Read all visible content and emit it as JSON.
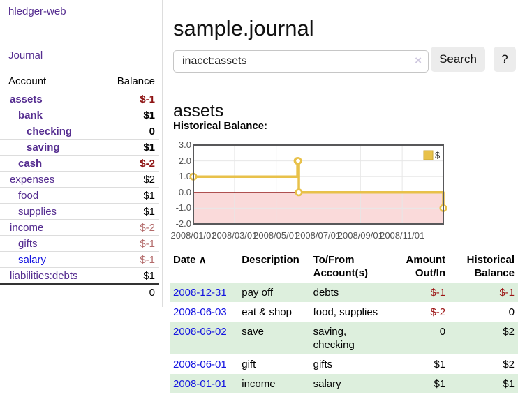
{
  "colors": {
    "link_purple": "#552d90",
    "link_blue": "#1414e0",
    "negative_strong": "#8e1414",
    "negative_soft": "#b36a6a",
    "row_highlight_green": "#ddefdd",
    "chart_gold": "#e8c14a"
  },
  "sidebar": {
    "app_title": "hledger-web",
    "journal_label": "Journal",
    "accounts_table": {
      "headers": {
        "account": "Account",
        "balance": "Balance"
      },
      "rows": [
        {
          "label": "assets",
          "indent": 1,
          "bold": true,
          "balance": "$-1",
          "balance_style": "strong-neg"
        },
        {
          "label": "bank",
          "indent": 2,
          "bold": true,
          "balance": "$1",
          "balance_style": "normal"
        },
        {
          "label": "checking",
          "indent": 3,
          "bold": true,
          "balance": "0",
          "balance_style": "normal"
        },
        {
          "label": "saving",
          "indent": 3,
          "bold": true,
          "balance": "$1",
          "balance_style": "normal"
        },
        {
          "label": "cash",
          "indent": 2,
          "bold": true,
          "balance": "$-2",
          "balance_style": "strong-neg"
        },
        {
          "label": "expenses",
          "indent": 1,
          "bold": false,
          "balance": "$2",
          "balance_style": "normal"
        },
        {
          "label": "food",
          "indent": 2,
          "bold": false,
          "balance": "$1",
          "balance_style": "normal"
        },
        {
          "label": "supplies",
          "indent": 2,
          "bold": false,
          "balance": "$1",
          "balance_style": "normal"
        },
        {
          "label": "income",
          "indent": 1,
          "bold": false,
          "balance": "$-2",
          "balance_style": "soft-neg"
        },
        {
          "label": "gifts",
          "indent": 2,
          "bold": false,
          "balance": "$-1",
          "balance_style": "soft-neg"
        },
        {
          "label": "salary",
          "indent": 2,
          "bold": false,
          "balance": "$-1",
          "balance_style": "soft-neg",
          "link_style": "blue"
        },
        {
          "label": "liabilities:debts",
          "indent": 1,
          "bold": false,
          "balance": "$1",
          "balance_style": "normal"
        }
      ],
      "total": "0"
    }
  },
  "main": {
    "title": "sample.journal",
    "search": {
      "value": "inacct:assets",
      "clear_icon": "×",
      "button_label": "Search",
      "help_label": "?"
    },
    "account_heading": "assets",
    "chart_label": "Historical Balance:"
  },
  "chart_data": {
    "type": "line",
    "subtype": "step",
    "title": "Historical Balance",
    "xlim": [
      "2008-01-01",
      "2008-12-31"
    ],
    "ylim": [
      -2,
      3
    ],
    "y_ticks": [
      {
        "v": 3,
        "label": "3.0"
      },
      {
        "v": 2,
        "label": "2.0"
      },
      {
        "v": 1,
        "label": "1.0"
      },
      {
        "v": 0,
        "label": "0.0"
      },
      {
        "v": -1,
        "label": "-1.0"
      },
      {
        "v": -2,
        "label": "-2.0"
      }
    ],
    "x_ticks": [
      {
        "date": "2008-01-01",
        "label": "2008/01/01"
      },
      {
        "date": "2008-03-01",
        "label": "2008/03/01"
      },
      {
        "date": "2008-05-01",
        "label": "2008/05/01"
      },
      {
        "date": "2008-07-01",
        "label": "2008/07/01"
      },
      {
        "date": "2008-09-01",
        "label": "2008/09/01"
      },
      {
        "date": "2008-11-01",
        "label": "2008/11/01"
      }
    ],
    "series": [
      {
        "name": "$",
        "points": [
          {
            "date": "2008-01-01",
            "value": 1
          },
          {
            "date": "2008-06-01",
            "value": 2
          },
          {
            "date": "2008-06-02",
            "value": 2
          },
          {
            "date": "2008-06-03",
            "value": 0
          },
          {
            "date": "2008-12-31",
            "value": -1
          }
        ]
      }
    ],
    "legend": {
      "label": "$",
      "position": "top-right"
    },
    "grid": true,
    "line_color": "#e8c14a",
    "marker_fill": "#ffffff",
    "negative_region_color": "#fadada",
    "zero_line_color": "#941616",
    "grid_color": "#e7e7e7",
    "border_color": "#58585a",
    "axis_text_color": "#545454"
  },
  "transactions": {
    "headers": {
      "date": "Date",
      "sort_icon": "∧",
      "description": "Description",
      "account": "To/From Account(s)",
      "amount": "Amount Out/In",
      "balance": "Historical Balance"
    },
    "rows": [
      {
        "date": "2008-12-31",
        "description": "pay off",
        "account": "debts",
        "amount": "$-1",
        "balance": "$-1",
        "amount_negative": true,
        "balance_negative": true,
        "highlighted": true
      },
      {
        "date": "2008-06-03",
        "description": "eat & shop",
        "account": "food, supplies",
        "amount": "$-2",
        "balance": "0",
        "amount_negative": true,
        "balance_negative": false,
        "highlighted": false
      },
      {
        "date": "2008-06-02",
        "description": "save",
        "account": "saving, checking",
        "amount": "0",
        "balance": "$2",
        "amount_negative": false,
        "balance_negative": false,
        "highlighted": true
      },
      {
        "date": "2008-06-01",
        "description": "gift",
        "account": "gifts",
        "amount": "$1",
        "balance": "$2",
        "amount_negative": false,
        "balance_negative": false,
        "highlighted": false
      },
      {
        "date": "2008-01-01",
        "description": "income",
        "account": "salary",
        "amount": "$1",
        "balance": "$1",
        "amount_negative": false,
        "balance_negative": false,
        "highlighted": true
      }
    ]
  }
}
